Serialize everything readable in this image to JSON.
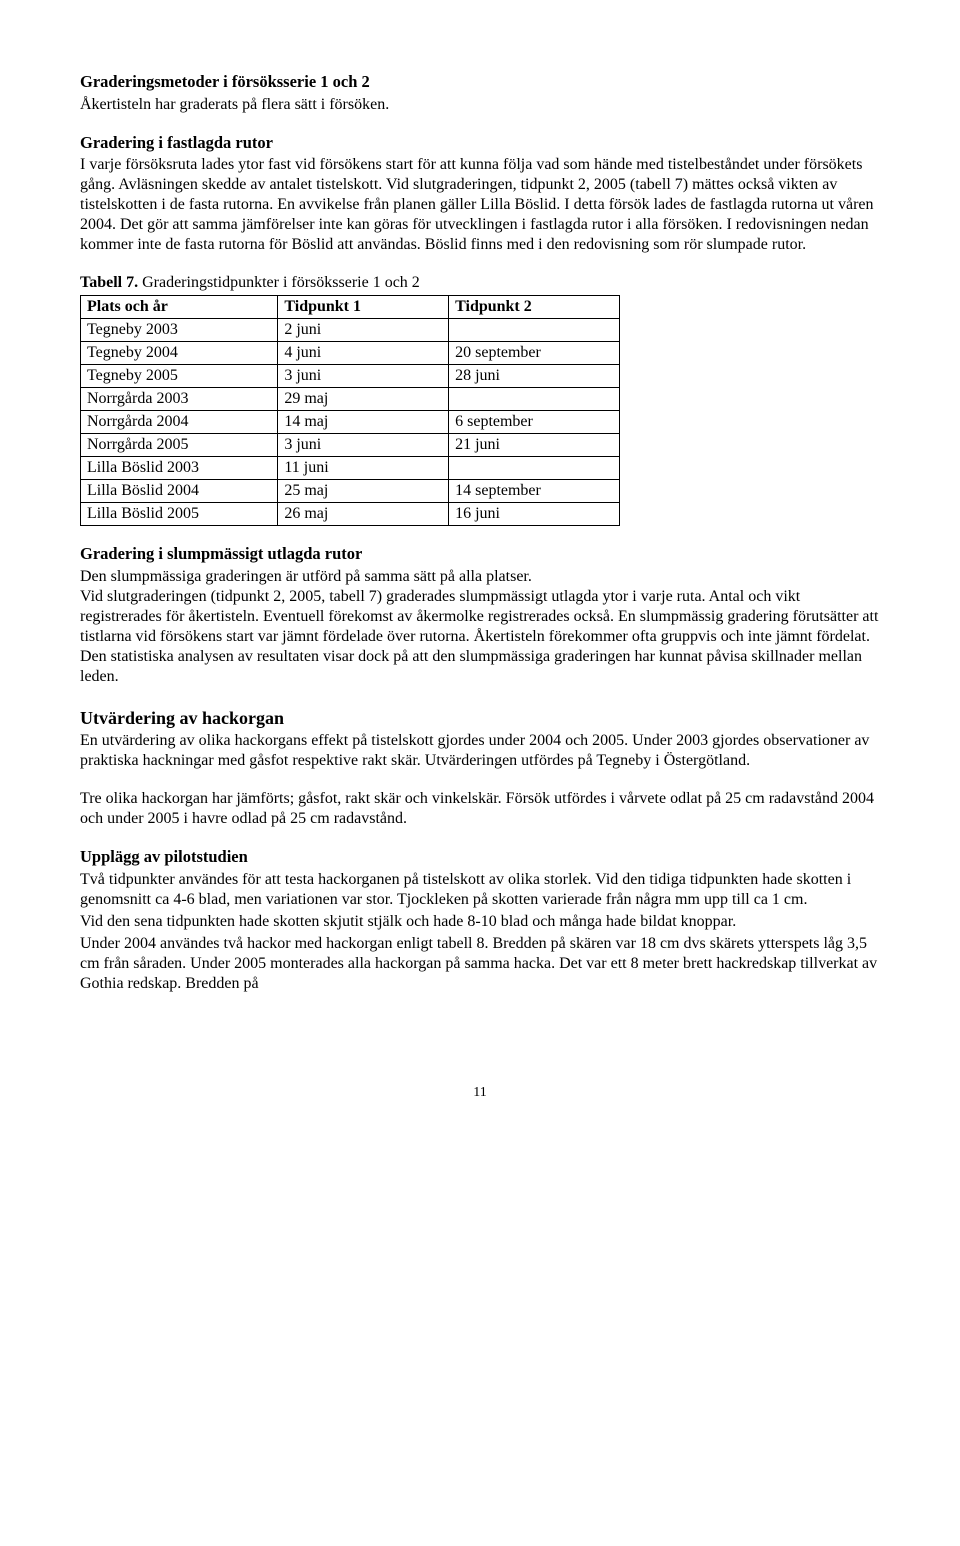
{
  "h1": "Graderingsmetoder i försöksserie 1 och 2",
  "intro": "Åkertisteln har graderats på flera sätt i försöken.",
  "sec1_h": "Gradering i fastlagda rutor",
  "sec1_p": "I varje försöksruta lades ytor fast vid försökens start för att kunna följa vad som hände med tistelbeståndet under försökets gång. Avläsningen skedde av antalet tistelskott. Vid slutgraderingen, tidpunkt 2, 2005 (tabell 7) mättes också vikten av tistelskotten i de fasta rutorna. En avvikelse från planen gäller Lilla Böslid. I detta försök lades de fastlagda rutorna ut våren 2004. Det gör att samma jämförelser inte kan göras för utvecklingen i fastlagda rutor i alla försöken. I redovisningen nedan kommer inte de fasta rutorna för Böslid att användas. Böslid finns med i den redovisning som rör slumpade rutor.",
  "table_caption_bold": "Tabell 7.",
  "table_caption_rest": " Graderingstidpunkter i försöksserie 1 och 2",
  "table": {
    "headers": [
      "Plats och år",
      "Tidpunkt 1",
      "Tidpunkt 2"
    ],
    "rows": [
      [
        "Tegneby 2003",
        "2 juni",
        ""
      ],
      [
        "Tegneby 2004",
        "4 juni",
        "20 september"
      ],
      [
        "Tegneby 2005",
        "3 juni",
        "28 juni"
      ],
      [
        "Norrgårda 2003",
        "29 maj",
        ""
      ],
      [
        "Norrgårda 2004",
        "14 maj",
        "6 september"
      ],
      [
        "Norrgårda 2005",
        "3 juni",
        "21 juni"
      ],
      [
        "Lilla Böslid 2003",
        "11 juni",
        ""
      ],
      [
        "Lilla Böslid 2004",
        "25 maj",
        "14 september"
      ],
      [
        "Lilla Böslid 2005",
        "26 maj",
        "16 juni"
      ]
    ]
  },
  "sec2_h": "Gradering i slumpmässigt utlagda rutor",
  "sec2_p": "Den slumpmässiga graderingen är utförd på samma sätt på alla platser.\nVid slutgraderingen (tidpunkt 2, 2005, tabell 7) graderades slumpmässigt utlagda ytor i varje ruta. Antal och vikt registrerades för åkertisteln. Eventuell förekomst av åkermolke registrerades också. En slumpmässig gradering förutsätter att tistlarna vid försökens start var jämnt fördelade över rutorna. Åkertisteln förekommer ofta gruppvis och inte jämnt fördelat. Den statistiska analysen av resultaten visar dock på att den slumpmässiga graderingen har kunnat påvisa skillnader mellan leden.",
  "sec3_h": "Utvärdering av hackorgan",
  "sec3_p1": "En utvärdering av olika hackorgans effekt på tistelskott gjordes under 2004 och 2005. Under 2003 gjordes observationer av praktiska hackningar med gåsfot respektive rakt skär. Utvärderingen utfördes på Tegneby i Östergötland.",
  "sec3_p2": "Tre olika hackorgan har jämförts; gåsfot, rakt skär och vinkelskär. Försök utfördes i vårvete odlat på 25 cm radavstånd 2004 och under 2005 i havre odlad på 25 cm radavstånd.",
  "sec4_h": "Upplägg av pilotstudien",
  "sec4_p1": "Två tidpunkter användes för att testa hackorganen på tistelskott av olika storlek. Vid den tidiga tidpunkten hade skotten i genomsnitt ca 4-6 blad, men variationen var stor. Tjockleken på skotten varierade från några mm upp till ca 1 cm.",
  "sec4_p2": "Vid den sena tidpunkten hade skotten skjutit stjälk och hade 8-10 blad och många hade bildat knoppar.",
  "sec4_p3": "Under 2004 användes två hackor med hackorgan enligt tabell 8. Bredden på skären var 18 cm dvs skärets ytterspets låg 3,5 cm från såraden. Under 2005 monterades alla hackorgan på samma hacka. Det var ett 8 meter brett hackredskap tillverkat av Gothia redskap. Bredden på",
  "page_number": "11"
}
